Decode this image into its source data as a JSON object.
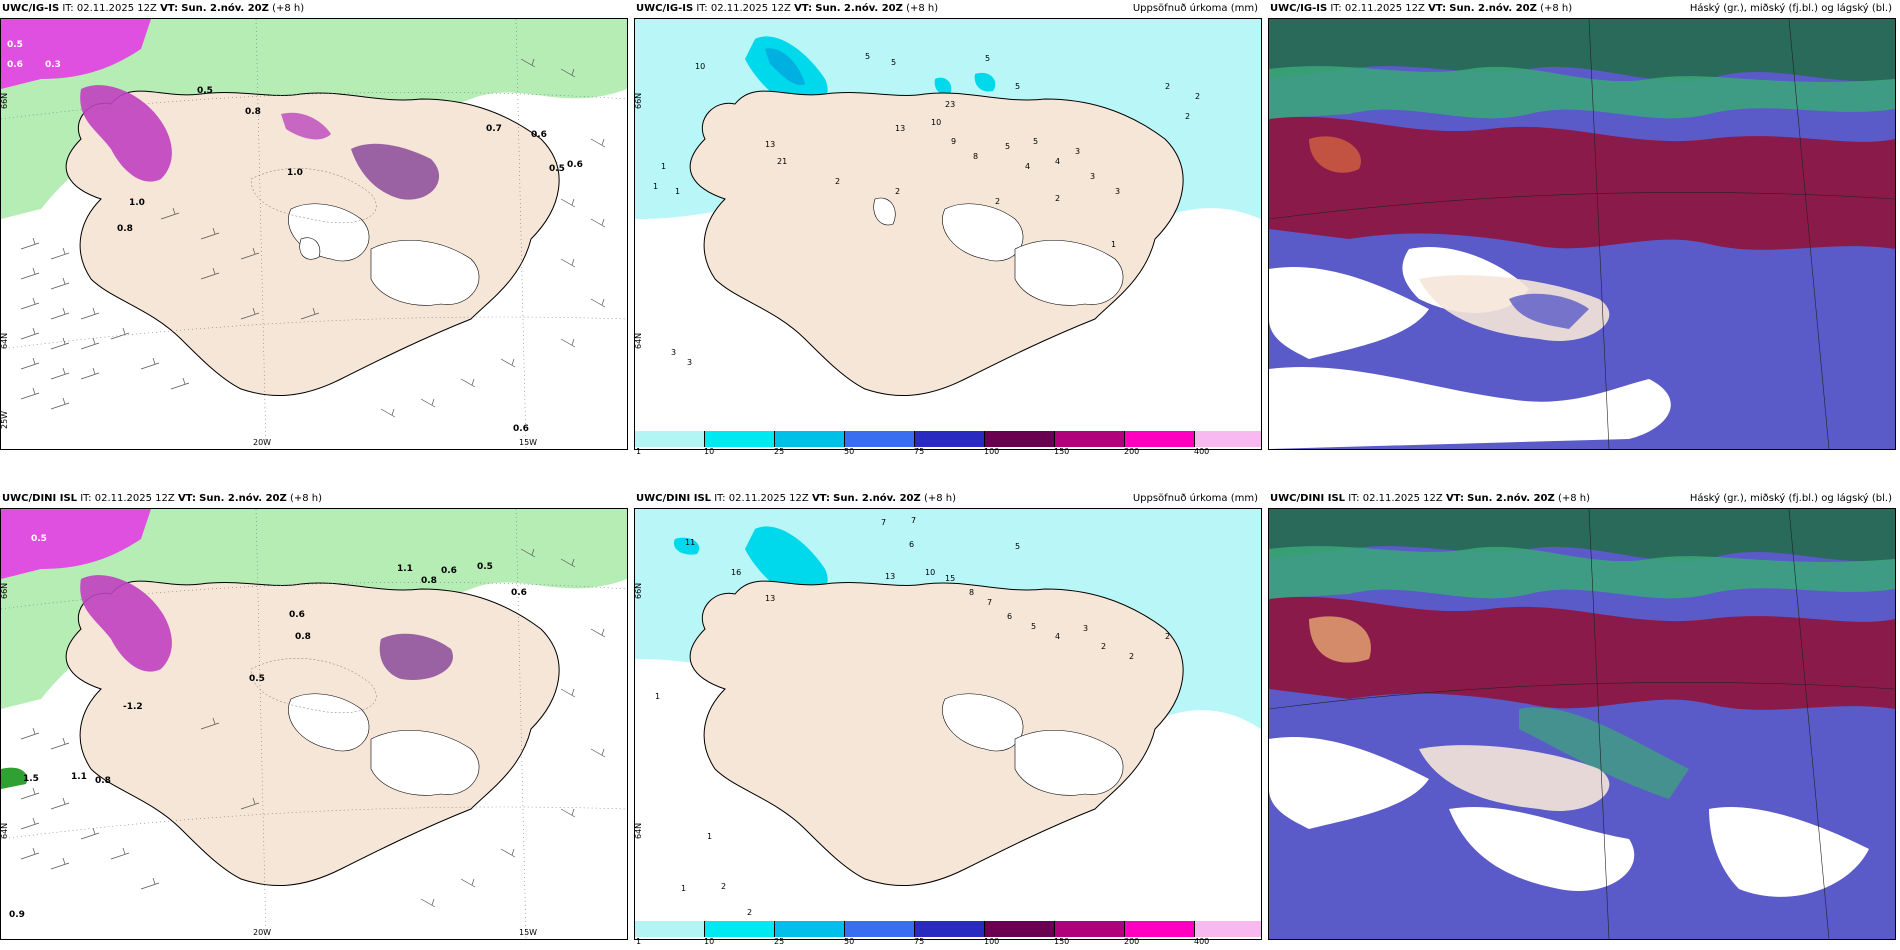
{
  "rows": [
    {
      "model": "UWC/IG-IS",
      "it_label": "IT:",
      "it_value": "02.11.2025 12Z",
      "vt_label": "VT:",
      "vt_value": "Sun. 2.nóv. 20Z",
      "lead": "(+8 h)"
    },
    {
      "model": "UWC/DINI ISL",
      "it_label": "IT:",
      "it_value": "02.11.2025 12Z",
      "vt_label": "VT:",
      "vt_value": "Sun. 2.nóv. 20Z",
      "lead": "(+8 h)"
    }
  ],
  "panel_titles": {
    "precip": "Uppsöfnuð úrkoma (mm)",
    "cloud": "Háský (gr.), miðský (fj.bl.) og lágský (bl.)"
  },
  "axis_labels": {
    "lon_20w": "20W",
    "lon_15w": "15W",
    "lon_25w": "25W",
    "lat_66n": "66N",
    "lat_64n": "64N"
  },
  "legend": {
    "ticks": [
      "1",
      "10",
      "25",
      "50",
      "75",
      "100",
      "150",
      "200",
      "400"
    ],
    "colors": [
      "#b3f5f5",
      "#00e8f0",
      "#00bfe8",
      "#3a6ef0",
      "#2a2ac0",
      "#6a0050",
      "#b0007a",
      "#ff00c0",
      "#f8b8f0"
    ]
  },
  "colors": {
    "land": "#f5e6d8",
    "sea_precip": "#b8f6f8",
    "green": "#9be69b",
    "magenta": "#e040e0",
    "purple": "#7a3a8a",
    "cloud_high": "#8a1a4a",
    "cloud_mid": "#5a5ac8",
    "cloud_low": "#2a6a5a"
  },
  "wind_labels": {
    "top": [
      "0.5",
      "0.6",
      "0.3",
      "0.5",
      "1.0",
      "0.8",
      "0.7",
      "0.6",
      "0.5",
      "0.6",
      "1.0",
      "0.8",
      "0.6"
    ],
    "bottom": [
      "0.5",
      "0.6",
      "0.8",
      "1.1",
      "0.5",
      "0.6",
      "0.8",
      "0.6",
      "0.5",
      "-1.2",
      "1.5",
      "1.1",
      "0.8",
      "0.9"
    ]
  },
  "precip_labels": {
    "top": [
      "10",
      "5",
      "5",
      "5",
      "5",
      "2",
      "2",
      "2",
      "1",
      "1",
      "1",
      "13",
      "13",
      "21",
      "23",
      "10",
      "9",
      "8",
      "5",
      "5",
      "4",
      "4",
      "3",
      "3",
      "3",
      "2",
      "2",
      "2",
      "2",
      "1",
      "3",
      "3"
    ],
    "bottom": [
      "7",
      "7",
      "6",
      "5",
      "11",
      "13",
      "16",
      "13",
      "15",
      "10",
      "8",
      "7",
      "6",
      "5",
      "4",
      "3",
      "2",
      "2",
      "2",
      "1",
      "1",
      "1",
      "2",
      "2"
    ]
  }
}
